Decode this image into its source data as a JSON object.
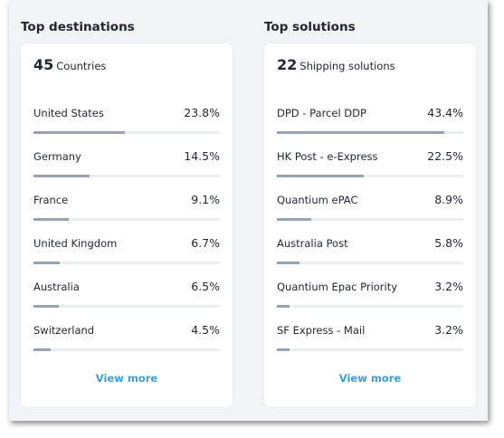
{
  "destinations": {
    "title": "Top destinations",
    "count": "45",
    "unit": "Countries",
    "items": [
      {
        "label": "United States",
        "value": "23.8%",
        "fraction": 0.238
      },
      {
        "label": "Germany",
        "value": "14.5%",
        "fraction": 0.145
      },
      {
        "label": "France",
        "value": "9.1%",
        "fraction": 0.091
      },
      {
        "label": "United Kingdom",
        "value": "6.7%",
        "fraction": 0.067
      },
      {
        "label": "Australia",
        "value": "6.5%",
        "fraction": 0.065
      },
      {
        "label": "Switzerland",
        "value": "4.5%",
        "fraction": 0.045
      }
    ],
    "view_more": "View more"
  },
  "solutions": {
    "title": "Top solutions",
    "count": "22",
    "unit": "Shipping solutions",
    "items": [
      {
        "label": "DPD - Parcel DDP",
        "value": "43.4%",
        "fraction": 0.434
      },
      {
        "label": "HK Post - e-Express",
        "value": "22.5%",
        "fraction": 0.225
      },
      {
        "label": "Quantium ePAC",
        "value": "8.9%",
        "fraction": 0.089
      },
      {
        "label": "Australia Post",
        "value": "5.8%",
        "fraction": 0.058
      },
      {
        "label": "Quantium Epac Priority",
        "value": "3.2%",
        "fraction": 0.032
      },
      {
        "label": "SF Express - Mail",
        "value": "3.2%",
        "fraction": 0.032
      }
    ],
    "view_more": "View more"
  }
}
